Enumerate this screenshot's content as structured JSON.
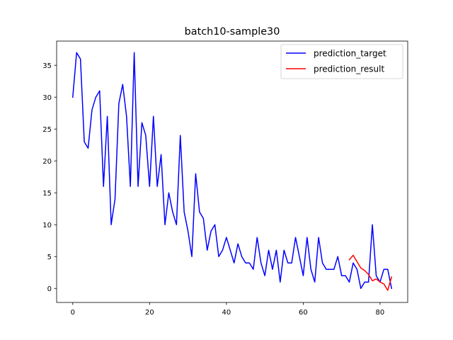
{
  "chart_data": {
    "type": "line",
    "title": "batch10-sample30",
    "xlabel": "",
    "ylabel": "",
    "xlim": [
      -4.2,
      87.2
    ],
    "ylim": [
      -2.2,
      38.8
    ],
    "x_ticks": [
      0,
      20,
      40,
      60,
      80
    ],
    "y_ticks": [
      0,
      5,
      10,
      15,
      20,
      25,
      30,
      35
    ],
    "grid": false,
    "legend": "top-right",
    "series": [
      {
        "name": "prediction_target",
        "color": "#0000ff",
        "x_start": 0,
        "values": [
          30,
          37,
          36,
          23,
          22,
          28,
          30,
          31,
          16,
          27,
          10,
          14,
          29,
          32,
          27,
          16,
          37,
          16,
          26,
          24,
          16,
          27,
          16,
          21,
          10,
          15,
          12,
          10,
          24,
          12,
          9,
          5,
          18,
          12,
          11,
          6,
          9,
          10,
          5,
          6,
          8,
          6,
          4,
          7,
          5,
          4,
          4,
          3,
          8,
          4,
          2,
          6,
          3,
          6,
          1,
          6,
          4,
          4,
          8,
          5,
          2,
          8,
          3,
          1,
          8,
          4,
          3,
          3,
          3,
          5,
          2,
          2,
          1,
          4,
          3,
          0,
          1,
          1,
          10,
          2,
          1,
          3,
          3,
          0
        ]
      },
      {
        "name": "prediction_result",
        "color": "#ff0000",
        "x_start": 72,
        "values": [
          4.5,
          5.2,
          4.2,
          3.2,
          2.8,
          2.2,
          1.2,
          1.5,
          1.0,
          0.7,
          -0.3,
          1.8
        ]
      }
    ]
  }
}
